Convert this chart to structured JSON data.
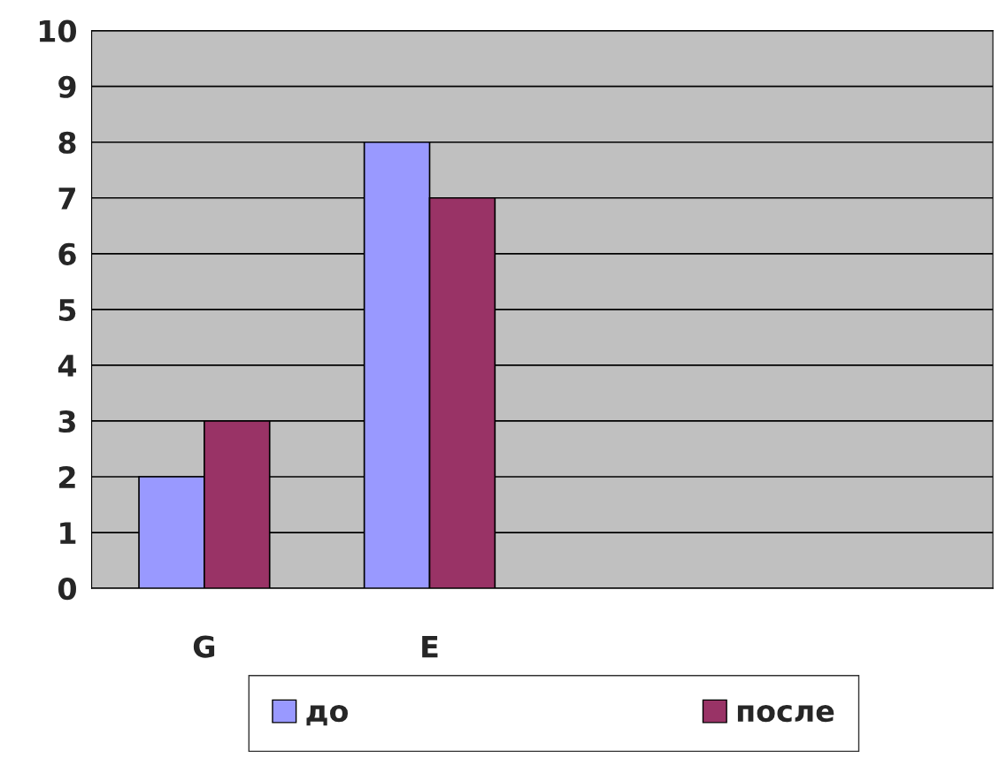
{
  "chart_data": {
    "type": "bar",
    "categories": [
      "G",
      "E",
      null,
      null
    ],
    "series": [
      {
        "name": "до",
        "color": "#9999ff",
        "values": [
          2,
          8,
          null,
          null
        ]
      },
      {
        "name": "после",
        "color": "#993366",
        "values": [
          3,
          7,
          null,
          null
        ]
      }
    ],
    "ylim": [
      0,
      10
    ],
    "yticks": [
      0,
      1,
      2,
      3,
      4,
      5,
      6,
      7,
      8,
      9,
      10
    ],
    "grid": "y",
    "legend": "bottom"
  }
}
